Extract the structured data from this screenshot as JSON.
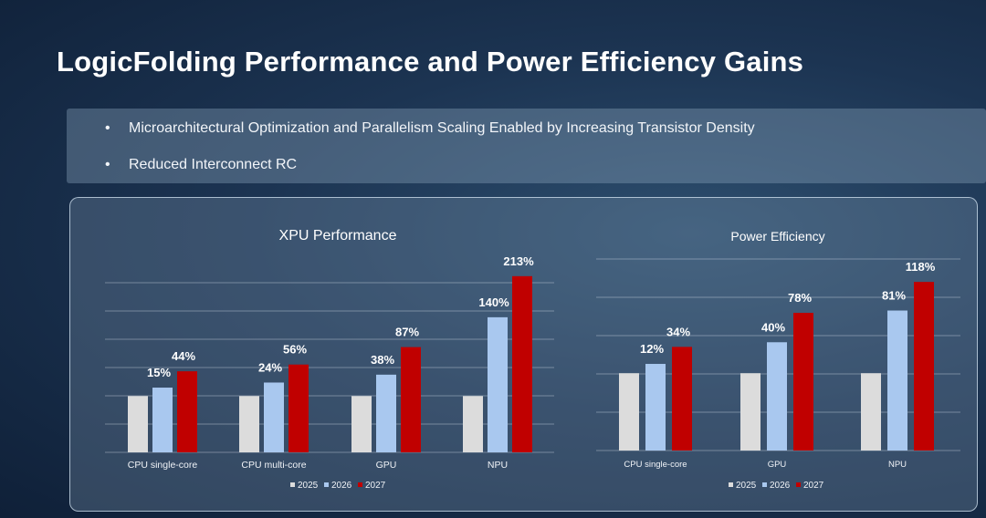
{
  "title": "LogicFolding Performance and Power Efficiency Gains",
  "bullets": [
    "Microarchitectural Optimization and Parallelism Scaling Enabled by Increasing Transistor Density",
    "Reduced Interconnect RC"
  ],
  "bullet_glyph": "•",
  "colors": {
    "2025": "#dcdcdc",
    "2026": "#a9c8ef",
    "2027": "#c00000"
  },
  "chart_data": [
    {
      "type": "bar",
      "title": "XPU Performance",
      "categories": [
        "CPU single-core",
        "CPU multi-core",
        "GPU",
        "NPU"
      ],
      "series": [
        {
          "name": "2025",
          "values": [
            0,
            0,
            0,
            0
          ],
          "labels": [
            "",
            "",
            "",
            ""
          ]
        },
        {
          "name": "2026",
          "values": [
            15,
            24,
            38,
            140
          ],
          "labels": [
            "15%",
            "24%",
            "38%",
            "140%"
          ]
        },
        {
          "name": "2027",
          "values": [
            44,
            56,
            87,
            213
          ],
          "labels": [
            "44%",
            "56%",
            "87%",
            "213%"
          ]
        }
      ],
      "ylim": [
        -100,
        250
      ],
      "grid": true,
      "legend": "bottom"
    },
    {
      "type": "bar",
      "title": "Power Efficiency",
      "categories": [
        "CPU single-core",
        "GPU",
        "NPU"
      ],
      "series": [
        {
          "name": "2025",
          "values": [
            0,
            0,
            0
          ],
          "labels": [
            "",
            "",
            ""
          ]
        },
        {
          "name": "2026",
          "values": [
            12,
            40,
            81
          ],
          "labels": [
            "12%",
            "40%",
            "81%"
          ]
        },
        {
          "name": "2027",
          "values": [
            34,
            78,
            118
          ],
          "labels": [
            "34%",
            "78%",
            "118%"
          ]
        }
      ],
      "ylim": [
        -100,
        150
      ],
      "grid": true,
      "legend": "bottom"
    }
  ]
}
